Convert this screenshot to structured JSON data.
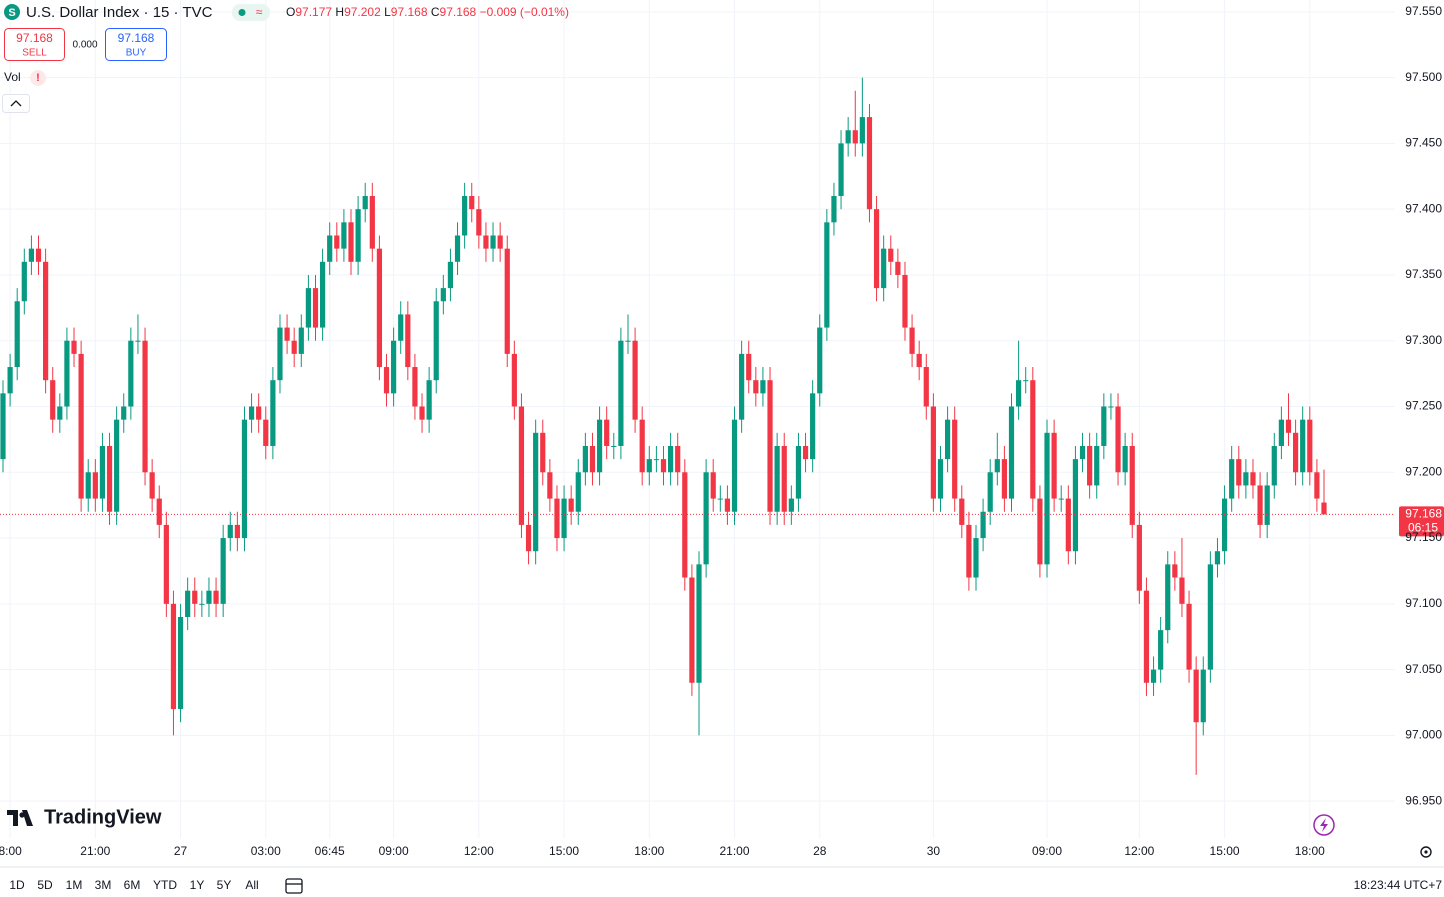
{
  "header": {
    "symbol": "U.S. Dollar Index · 15 · TVC",
    "ohlc": [
      {
        "k": "O",
        "v": "97.177"
      },
      {
        "k": "H",
        "v": "97.202"
      },
      {
        "k": "L",
        "v": "97.168"
      },
      {
        "k": "C",
        "v": "97.168"
      }
    ],
    "change": "−0.009 (−0.01%)"
  },
  "trade": {
    "sell_price": "97.168",
    "sell": "SELL",
    "spread": "0.000",
    "buy_price": "97.168",
    "buy": "BUY"
  },
  "indicator": "Vol",
  "price_tag": {
    "price": "97.168",
    "countdown": "06:15"
  },
  "logo": "TradingView",
  "timeframes": [
    "1D",
    "5D",
    "1M",
    "3M",
    "6M",
    "YTD",
    "1Y",
    "5Y",
    "All"
  ],
  "clock": "18:23:44 UTC+7",
  "chart_data": {
    "type": "candlestick",
    "up_color": "#089981",
    "down_color": "#f23645",
    "grid": true,
    "ylim": [
      96.922,
      97.559
    ],
    "yticks": [
      {
        "value": 96.95,
        "label": "96.950"
      },
      {
        "value": 97,
        "label": "97.000"
      },
      {
        "value": 97.05,
        "label": "97.050"
      },
      {
        "value": 97.1,
        "label": "97.100"
      },
      {
        "value": 97.15,
        "label": "97.150"
      },
      {
        "value": 97.2,
        "label": "97.200"
      },
      {
        "value": 97.25,
        "label": "97.250"
      },
      {
        "value": 97.3,
        "label": "97.300"
      },
      {
        "value": 97.35,
        "label": "97.350"
      },
      {
        "value": 97.4,
        "label": "97.400"
      },
      {
        "value": 97.45,
        "label": "97.450"
      },
      {
        "value": 97.5,
        "label": "97.500"
      },
      {
        "value": 97.55,
        "label": "97.550"
      }
    ],
    "categories": [
      null,
      "8:00",
      null,
      null,
      null,
      null,
      null,
      null,
      null,
      null,
      null,
      null,
      null,
      "21:00",
      null,
      null,
      null,
      null,
      null,
      null,
      null,
      null,
      null,
      null,
      null,
      "27",
      null,
      null,
      null,
      null,
      null,
      null,
      null,
      null,
      null,
      null,
      null,
      "03:00",
      null,
      null,
      null,
      null,
      null,
      null,
      null,
      null,
      "06:45",
      null,
      null,
      null,
      null,
      null,
      null,
      null,
      null,
      "09:00",
      null,
      null,
      null,
      null,
      null,
      null,
      null,
      null,
      null,
      null,
      null,
      "12:00",
      null,
      null,
      null,
      null,
      null,
      null,
      null,
      null,
      null,
      null,
      null,
      "15:00",
      null,
      null,
      null,
      null,
      null,
      null,
      null,
      null,
      null,
      null,
      null,
      "18:00",
      null,
      null,
      null,
      null,
      null,
      null,
      null,
      null,
      null,
      null,
      null,
      "21:00",
      null,
      null,
      null,
      null,
      null,
      null,
      null,
      null,
      null,
      null,
      null,
      "28",
      null,
      null,
      null,
      null,
      null,
      null,
      null,
      null,
      null,
      null,
      null,
      null,
      null,
      null,
      null,
      "30",
      null,
      null,
      null,
      null,
      null,
      null,
      null,
      null,
      null,
      null,
      null,
      null,
      null,
      null,
      null,
      "09:00",
      null,
      null,
      null,
      null,
      null,
      null,
      null,
      null,
      null,
      null,
      null,
      null,
      "12:00",
      null,
      null,
      null,
      null,
      null,
      null,
      null,
      null,
      null,
      null,
      null,
      "15:00",
      null,
      null,
      null,
      null,
      null,
      null,
      null,
      null,
      null,
      null,
      null,
      "18:00",
      null,
      null
    ],
    "open": [
      97.21,
      97.26,
      97.28,
      97.33,
      97.36,
      97.37,
      97.36,
      97.27,
      97.24,
      97.25,
      97.3,
      97.29,
      97.18,
      97.2,
      97.18,
      97.22,
      97.17,
      97.24,
      97.25,
      97.3,
      97.3,
      97.2,
      97.18,
      97.16,
      97.1,
      97.02,
      97.09,
      97.11,
      97.1,
      97.1,
      97.11,
      97.1,
      97.15,
      97.16,
      97.15,
      97.24,
      97.25,
      97.24,
      97.22,
      97.27,
      97.31,
      97.3,
      97.29,
      97.31,
      97.34,
      97.31,
      97.36,
      97.38,
      97.37,
      97.39,
      97.36,
      97.4,
      97.41,
      97.37,
      97.28,
      97.26,
      97.3,
      97.32,
      97.28,
      97.25,
      97.24,
      97.27,
      97.33,
      97.34,
      97.36,
      97.38,
      97.41,
      97.4,
      97.38,
      97.37,
      97.38,
      97.37,
      97.29,
      97.25,
      97.16,
      97.14,
      97.23,
      97.2,
      97.18,
      97.15,
      97.18,
      97.17,
      97.2,
      97.22,
      97.2,
      97.24,
      97.22,
      97.22,
      97.3,
      97.3,
      97.24,
      97.2,
      97.21,
      97.21,
      97.2,
      97.22,
      97.2,
      97.12,
      97.04,
      97.13,
      97.2,
      97.18,
      97.18,
      97.17,
      97.24,
      97.29,
      97.27,
      97.26,
      97.27,
      97.17,
      97.22,
      97.17,
      97.18,
      97.22,
      97.21,
      97.26,
      97.31,
      97.39,
      97.41,
      97.45,
      97.46,
      97.45,
      97.47,
      97.4,
      97.34,
      97.37,
      97.36,
      97.35,
      97.31,
      97.29,
      97.28,
      97.25,
      97.18,
      97.21,
      97.24,
      97.18,
      97.16,
      97.12,
      97.15,
      97.17,
      97.2,
      97.21,
      97.18,
      97.25,
      97.27,
      97.27,
      97.18,
      97.13,
      97.23,
      97.18,
      97.18,
      97.14,
      97.21,
      97.22,
      97.19,
      97.22,
      97.25,
      97.25,
      97.2,
      97.22,
      97.16,
      97.11,
      97.04,
      97.05,
      97.08,
      97.13,
      97.12,
      97.1,
      97.05,
      97.01,
      97.05,
      97.13,
      97.14,
      97.18,
      97.21,
      97.19,
      97.2,
      97.19,
      97.16,
      97.19,
      97.22,
      97.24,
      97.23,
      97.2,
      97.24,
      97.2,
      97.177
    ],
    "high": [
      97.27,
      97.29,
      97.34,
      97.37,
      97.38,
      97.38,
      97.37,
      97.28,
      97.26,
      97.31,
      97.31,
      97.3,
      97.21,
      97.21,
      97.23,
      97.23,
      97.25,
      97.26,
      97.31,
      97.32,
      97.31,
      97.21,
      97.19,
      97.17,
      97.11,
      97.1,
      97.12,
      97.12,
      97.11,
      97.12,
      97.12,
      97.16,
      97.17,
      97.17,
      97.25,
      97.26,
      97.26,
      97.25,
      97.28,
      97.32,
      97.32,
      97.31,
      97.32,
      97.35,
      97.35,
      97.37,
      97.39,
      97.39,
      97.4,
      97.4,
      97.41,
      97.42,
      97.42,
      97.38,
      97.29,
      97.31,
      97.33,
      97.33,
      97.29,
      97.26,
      97.28,
      97.34,
      97.35,
      97.37,
      97.39,
      97.42,
      97.42,
      97.41,
      97.39,
      97.39,
      97.39,
      97.38,
      97.3,
      97.26,
      97.17,
      97.24,
      97.24,
      97.21,
      97.19,
      97.19,
      97.19,
      97.21,
      97.23,
      97.23,
      97.25,
      97.25,
      97.23,
      97.31,
      97.32,
      97.31,
      97.25,
      97.22,
      97.22,
      97.22,
      97.23,
      97.23,
      97.21,
      97.13,
      97.14,
      97.21,
      97.21,
      97.19,
      97.19,
      97.25,
      97.3,
      97.3,
      97.28,
      97.28,
      97.28,
      97.23,
      97.23,
      97.19,
      97.23,
      97.23,
      97.27,
      97.32,
      97.4,
      97.42,
      97.46,
      97.47,
      97.49,
      97.5,
      97.48,
      97.41,
      97.38,
      97.38,
      97.37,
      97.36,
      97.32,
      97.3,
      97.29,
      97.26,
      97.22,
      97.25,
      97.25,
      97.19,
      97.17,
      97.16,
      97.18,
      97.21,
      97.23,
      97.22,
      97.26,
      97.3,
      97.28,
      97.28,
      97.19,
      97.24,
      97.24,
      97.19,
      97.19,
      97.22,
      97.23,
      97.23,
      97.23,
      97.26,
      97.26,
      97.26,
      97.23,
      97.23,
      97.17,
      97.12,
      97.06,
      97.09,
      97.14,
      97.14,
      97.15,
      97.11,
      97.06,
      97.06,
      97.14,
      97.15,
      97.19,
      97.22,
      97.22,
      97.21,
      97.21,
      97.2,
      97.2,
      97.23,
      97.25,
      97.26,
      97.24,
      97.25,
      97.25,
      97.21,
      97.202
    ],
    "low": [
      97.2,
      97.25,
      97.27,
      97.32,
      97.35,
      97.35,
      97.26,
      97.23,
      97.23,
      97.24,
      97.28,
      97.17,
      97.17,
      97.17,
      97.17,
      97.16,
      97.16,
      97.23,
      97.24,
      97.29,
      97.19,
      97.17,
      97.15,
      97.09,
      97.0,
      97.01,
      97.08,
      97.09,
      97.09,
      97.09,
      97.09,
      97.09,
      97.14,
      97.14,
      97.14,
      97.23,
      97.23,
      97.21,
      97.21,
      97.26,
      97.29,
      97.28,
      97.28,
      97.3,
      97.3,
      97.3,
      97.35,
      97.36,
      97.36,
      97.35,
      97.35,
      97.39,
      97.36,
      97.27,
      97.25,
      97.25,
      97.29,
      97.27,
      97.24,
      97.23,
      97.23,
      97.26,
      97.32,
      97.33,
      97.35,
      97.37,
      97.39,
      97.37,
      97.36,
      97.36,
      97.36,
      97.28,
      97.24,
      97.15,
      97.13,
      97.13,
      97.19,
      97.17,
      97.14,
      97.14,
      97.16,
      97.16,
      97.19,
      97.19,
      97.19,
      97.21,
      97.21,
      97.21,
      97.29,
      97.23,
      97.19,
      97.19,
      97.2,
      97.19,
      97.19,
      97.19,
      97.11,
      97.03,
      97.0,
      97.12,
      97.17,
      97.17,
      97.16,
      97.16,
      97.23,
      97.26,
      97.25,
      97.25,
      97.16,
      97.16,
      97.16,
      97.16,
      97.17,
      97.2,
      97.2,
      97.25,
      97.3,
      97.38,
      97.4,
      97.44,
      97.44,
      97.44,
      97.39,
      97.33,
      97.33,
      97.35,
      97.34,
      97.3,
      97.28,
      97.27,
      97.24,
      97.17,
      97.17,
      97.2,
      97.17,
      97.15,
      97.11,
      97.11,
      97.14,
      97.16,
      97.19,
      97.17,
      97.17,
      97.24,
      97.26,
      97.17,
      97.12,
      97.12,
      97.17,
      97.17,
      97.13,
      97.13,
      97.2,
      97.18,
      97.18,
      97.21,
      97.24,
      97.19,
      97.19,
      97.15,
      97.1,
      97.03,
      97.03,
      97.04,
      97.07,
      97.11,
      97.09,
      97.04,
      96.97,
      97.0,
      97.04,
      97.12,
      97.13,
      97.17,
      97.18,
      97.18,
      97.18,
      97.15,
      97.15,
      97.18,
      97.21,
      97.22,
      97.19,
      97.19,
      97.19,
      97.17,
      97.168
    ],
    "close": [
      97.26,
      97.28,
      97.33,
      97.36,
      97.37,
      97.36,
      97.27,
      97.24,
      97.25,
      97.3,
      97.29,
      97.18,
      97.2,
      97.18,
      97.22,
      97.17,
      97.24,
      97.25,
      97.3,
      97.3,
      97.2,
      97.18,
      97.16,
      97.1,
      97.02,
      97.09,
      97.11,
      97.1,
      97.1,
      97.11,
      97.1,
      97.15,
      97.16,
      97.15,
      97.24,
      97.25,
      97.24,
      97.22,
      97.27,
      97.31,
      97.3,
      97.29,
      97.31,
      97.34,
      97.31,
      97.36,
      97.38,
      97.37,
      97.39,
      97.36,
      97.4,
      97.41,
      97.37,
      97.28,
      97.26,
      97.3,
      97.32,
      97.28,
      97.25,
      97.24,
      97.27,
      97.33,
      97.34,
      97.36,
      97.38,
      97.41,
      97.4,
      97.38,
      97.37,
      97.38,
      97.37,
      97.29,
      97.25,
      97.16,
      97.14,
      97.23,
      97.2,
      97.18,
      97.15,
      97.18,
      97.17,
      97.2,
      97.22,
      97.2,
      97.24,
      97.22,
      97.22,
      97.3,
      97.3,
      97.24,
      97.2,
      97.21,
      97.21,
      97.2,
      97.22,
      97.2,
      97.12,
      97.04,
      97.13,
      97.2,
      97.18,
      97.18,
      97.17,
      97.24,
      97.29,
      97.27,
      97.26,
      97.27,
      97.17,
      97.22,
      97.17,
      97.18,
      97.22,
      97.21,
      97.26,
      97.31,
      97.39,
      97.41,
      97.45,
      97.46,
      97.45,
      97.47,
      97.4,
      97.34,
      97.37,
      97.36,
      97.35,
      97.31,
      97.29,
      97.28,
      97.25,
      97.18,
      97.21,
      97.24,
      97.18,
      97.16,
      97.12,
      97.15,
      97.17,
      97.2,
      97.21,
      97.18,
      97.25,
      97.27,
      97.27,
      97.18,
      97.13,
      97.23,
      97.18,
      97.18,
      97.14,
      97.21,
      97.22,
      97.19,
      97.22,
      97.25,
      97.25,
      97.2,
      97.22,
      97.16,
      97.11,
      97.04,
      97.05,
      97.08,
      97.13,
      97.12,
      97.1,
      97.05,
      97.01,
      97.05,
      97.13,
      97.14,
      97.18,
      97.21,
      97.19,
      97.2,
      97.19,
      97.16,
      97.19,
      97.22,
      97.24,
      97.23,
      97.2,
      97.24,
      97.2,
      97.18,
      97.168
    ]
  }
}
